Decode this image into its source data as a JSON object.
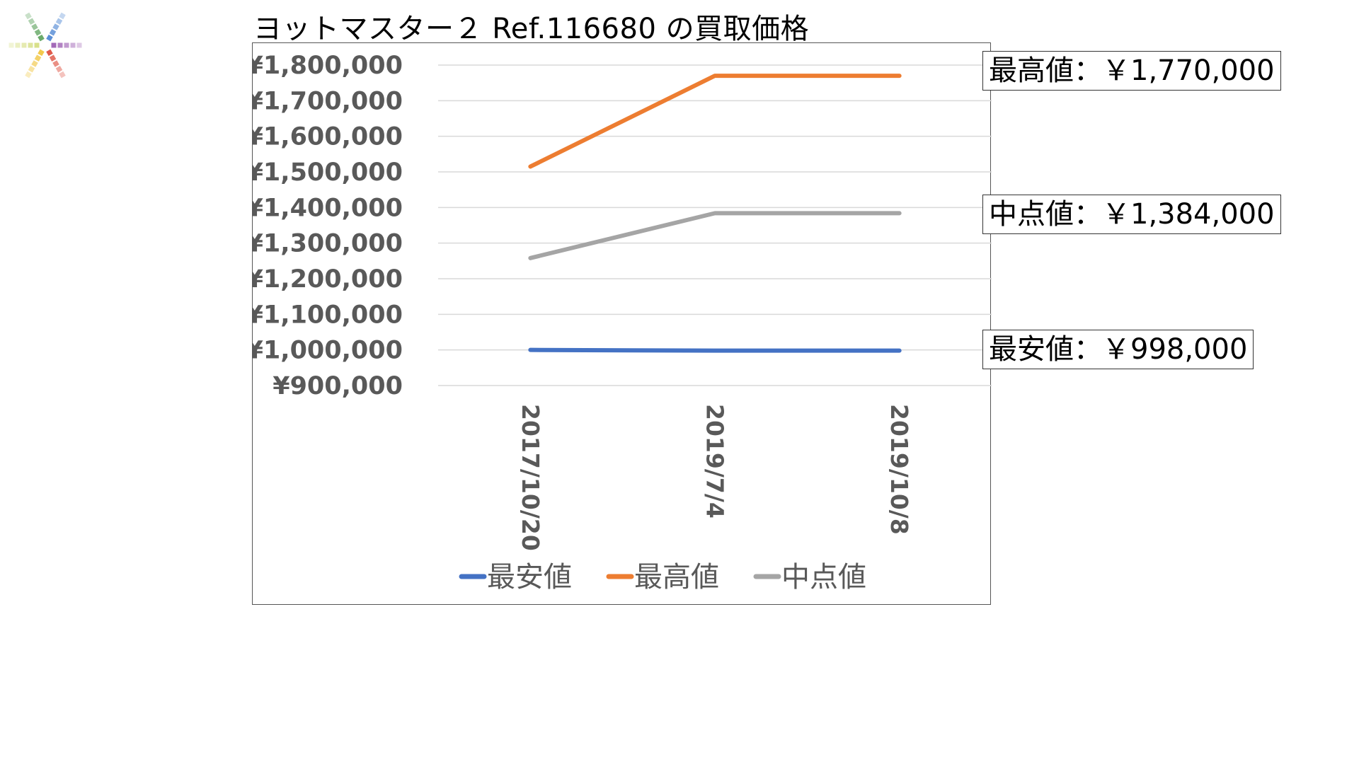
{
  "page": {
    "title": "ヨットマスター２ Ref.116680 の買取価格"
  },
  "callouts": {
    "max": "最高値：￥1,770,000",
    "mid": "中点値：￥1,384,000",
    "min": "最安値：￥998,000"
  },
  "chart_data": {
    "type": "line",
    "title": "",
    "xlabel": "",
    "ylabel": "",
    "categories": [
      "2017/10/20",
      "2019/7/4",
      "2019/10/8"
    ],
    "ylim": [
      900000,
      1800000
    ],
    "yticks": [
      1800000,
      1700000,
      1600000,
      1500000,
      1400000,
      1300000,
      1200000,
      1100000,
      1000000,
      900000
    ],
    "ytick_labels": [
      "¥1,800,000",
      "¥1,700,000",
      "¥1,600,000",
      "¥1,500,000",
      "¥1,400,000",
      "¥1,300,000",
      "¥1,200,000",
      "¥1,100,000",
      "¥1,000,000",
      "¥900,000"
    ],
    "grid": true,
    "legend_position": "bottom",
    "series": [
      {
        "name": "最安値",
        "color": "#4472C4",
        "values": [
          1000000,
          998000,
          998000
        ]
      },
      {
        "name": "最高値",
        "color": "#ED7D31",
        "values": [
          1515000,
          1770000,
          1770000
        ]
      },
      {
        "name": "中点値",
        "color": "#A5A5A5",
        "values": [
          1258000,
          1384000,
          1384000
        ]
      }
    ]
  }
}
